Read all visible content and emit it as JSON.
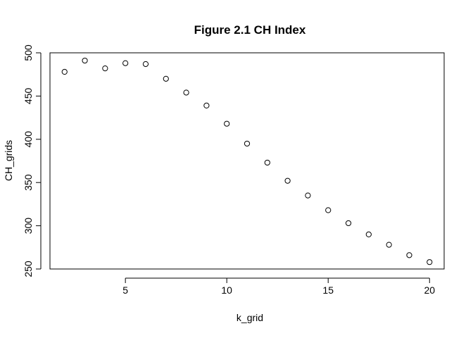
{
  "chart_data": {
    "type": "scatter",
    "title": "Figure 2.1 CH Index",
    "xlabel": "k_grid",
    "ylabel": "CH_grids",
    "x_ticks": [
      5,
      10,
      15,
      20
    ],
    "y_ticks": [
      250,
      300,
      350,
      400,
      450,
      500
    ],
    "xlim": [
      1.28,
      20.72
    ],
    "ylim": [
      250,
      500
    ],
    "marker": "open-circle",
    "grid": false,
    "series": [
      {
        "x": [
          2,
          3,
          4,
          5,
          6,
          7,
          8,
          9,
          10,
          11,
          12,
          13,
          14,
          15,
          16,
          17,
          18,
          19,
          20
        ],
        "y": [
          478,
          491,
          482,
          488,
          487,
          470,
          454,
          439,
          418,
          395,
          373,
          352,
          335,
          318,
          303,
          290,
          278,
          266,
          258
        ]
      }
    ]
  }
}
